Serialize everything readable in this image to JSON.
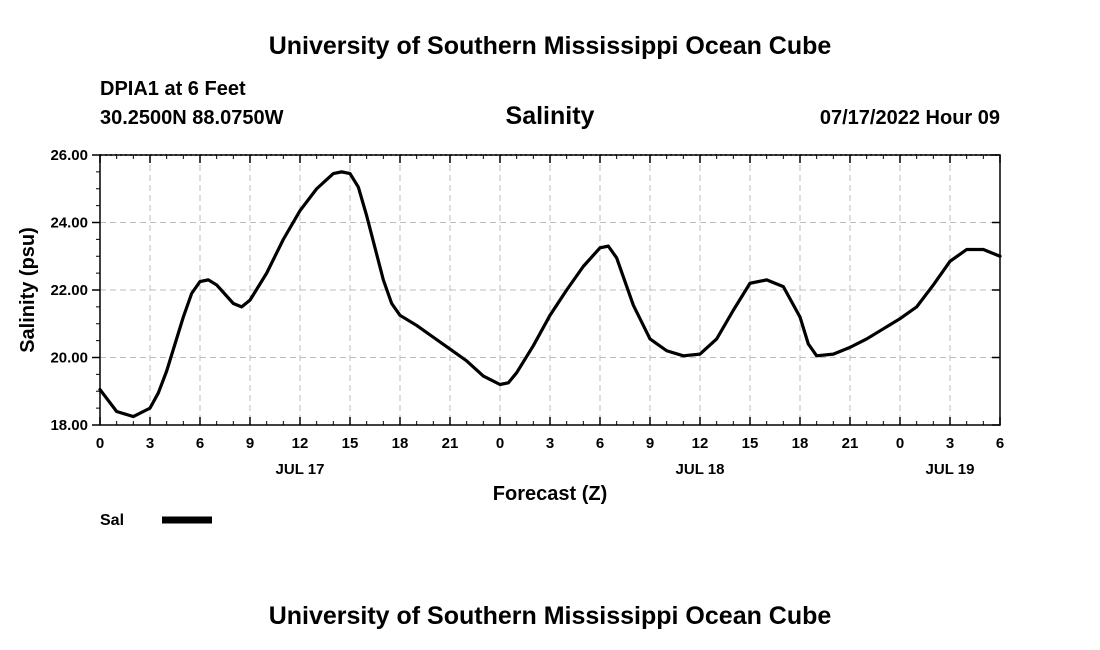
{
  "header": {
    "title": "University of Southern Mississippi Ocean Cube",
    "station": "DPIA1 at 6 Feet",
    "coords": "30.2500N  88.0750W",
    "datetime": "07/17/2022 Hour 09",
    "footer_title": "University of Southern Mississippi Ocean Cube"
  },
  "chart_data": {
    "type": "line",
    "title": "Salinity",
    "xlabel": "Forecast (Z)",
    "ylabel": "Salinity (psu)",
    "x_unit": "forecast hour from 2022-07-17 00Z",
    "xlim": [
      0,
      54
    ],
    "ylim": [
      18,
      26
    ],
    "y_ticks": [
      "18.00",
      "20.00",
      "22.00",
      "24.00",
      "26.00"
    ],
    "x_ticks": [
      "0",
      "3",
      "6",
      "9",
      "12",
      "15",
      "18",
      "21",
      "0",
      "3",
      "6",
      "9",
      "12",
      "15",
      "18",
      "21",
      "0",
      "3",
      "6"
    ],
    "day_labels": [
      {
        "label": "JUL 17",
        "hour": 12
      },
      {
        "label": "JUL 18",
        "hour": 36
      },
      {
        "label": "JUL 19",
        "hour": 51
      }
    ],
    "grid": true,
    "legend_position": "bottom-left",
    "series": [
      {
        "name": "Sal",
        "color": "#000000",
        "x": [
          0,
          1,
          2,
          3,
          3.5,
          4,
          5,
          5.5,
          6,
          6.5,
          7,
          8,
          8.5,
          9,
          10,
          11,
          12,
          13,
          14,
          14.5,
          15,
          15.5,
          16,
          17,
          17.5,
          18,
          19,
          20,
          21,
          22,
          23,
          24,
          24.5,
          25,
          26,
          27,
          28,
          29,
          30,
          30.5,
          31,
          32,
          33,
          34,
          35,
          36,
          37,
          38,
          39,
          40,
          41,
          42,
          42.5,
          43,
          44,
          45,
          46,
          47,
          48,
          49,
          50,
          51,
          52,
          53,
          54
        ],
        "y": [
          19.05,
          18.4,
          18.25,
          18.5,
          18.95,
          19.6,
          21.2,
          21.9,
          22.25,
          22.3,
          22.15,
          21.6,
          21.5,
          21.7,
          22.5,
          23.5,
          24.35,
          25.0,
          25.45,
          25.5,
          25.45,
          25.05,
          24.2,
          22.3,
          21.6,
          21.25,
          20.95,
          20.6,
          20.25,
          19.9,
          19.45,
          19.2,
          19.25,
          19.55,
          20.35,
          21.25,
          22.0,
          22.7,
          23.25,
          23.3,
          22.95,
          21.55,
          20.55,
          20.2,
          20.05,
          20.1,
          20.55,
          21.4,
          22.2,
          22.3,
          22.1,
          21.2,
          20.4,
          20.05,
          20.1,
          20.3,
          20.55,
          20.85,
          21.15,
          21.5,
          22.15,
          22.85,
          23.2,
          23.2,
          23.0
        ]
      }
    ]
  }
}
